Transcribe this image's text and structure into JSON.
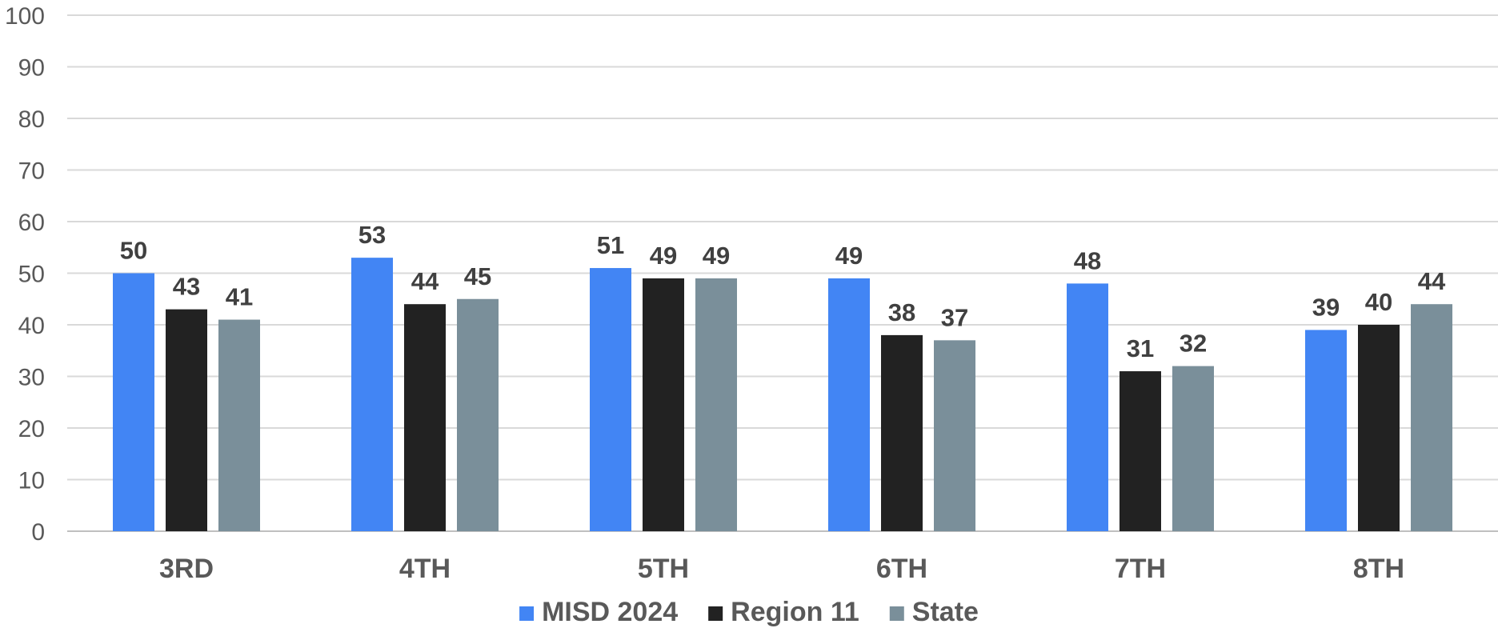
{
  "chart_data": {
    "type": "bar",
    "title": "",
    "xlabel": "",
    "ylabel": "",
    "categories": [
      "3RD",
      "4TH",
      "5TH",
      "6TH",
      "7TH",
      "8TH"
    ],
    "series": [
      {
        "name": "MISD 2024",
        "color": "#4285F4",
        "values": [
          50,
          53,
          51,
          49,
          48,
          39
        ]
      },
      {
        "name": "Region 11",
        "color": "#222222",
        "values": [
          43,
          44,
          49,
          38,
          31,
          40
        ]
      },
      {
        "name": "State",
        "color": "#7A8F9A",
        "values": [
          41,
          45,
          49,
          37,
          32,
          44
        ]
      }
    ],
    "ylim": [
      0,
      100
    ],
    "yticks": [
      0,
      10,
      20,
      30,
      40,
      50,
      60,
      70,
      80,
      90,
      100
    ],
    "grid": true,
    "legend_position": "bottom",
    "data_labels": true
  }
}
